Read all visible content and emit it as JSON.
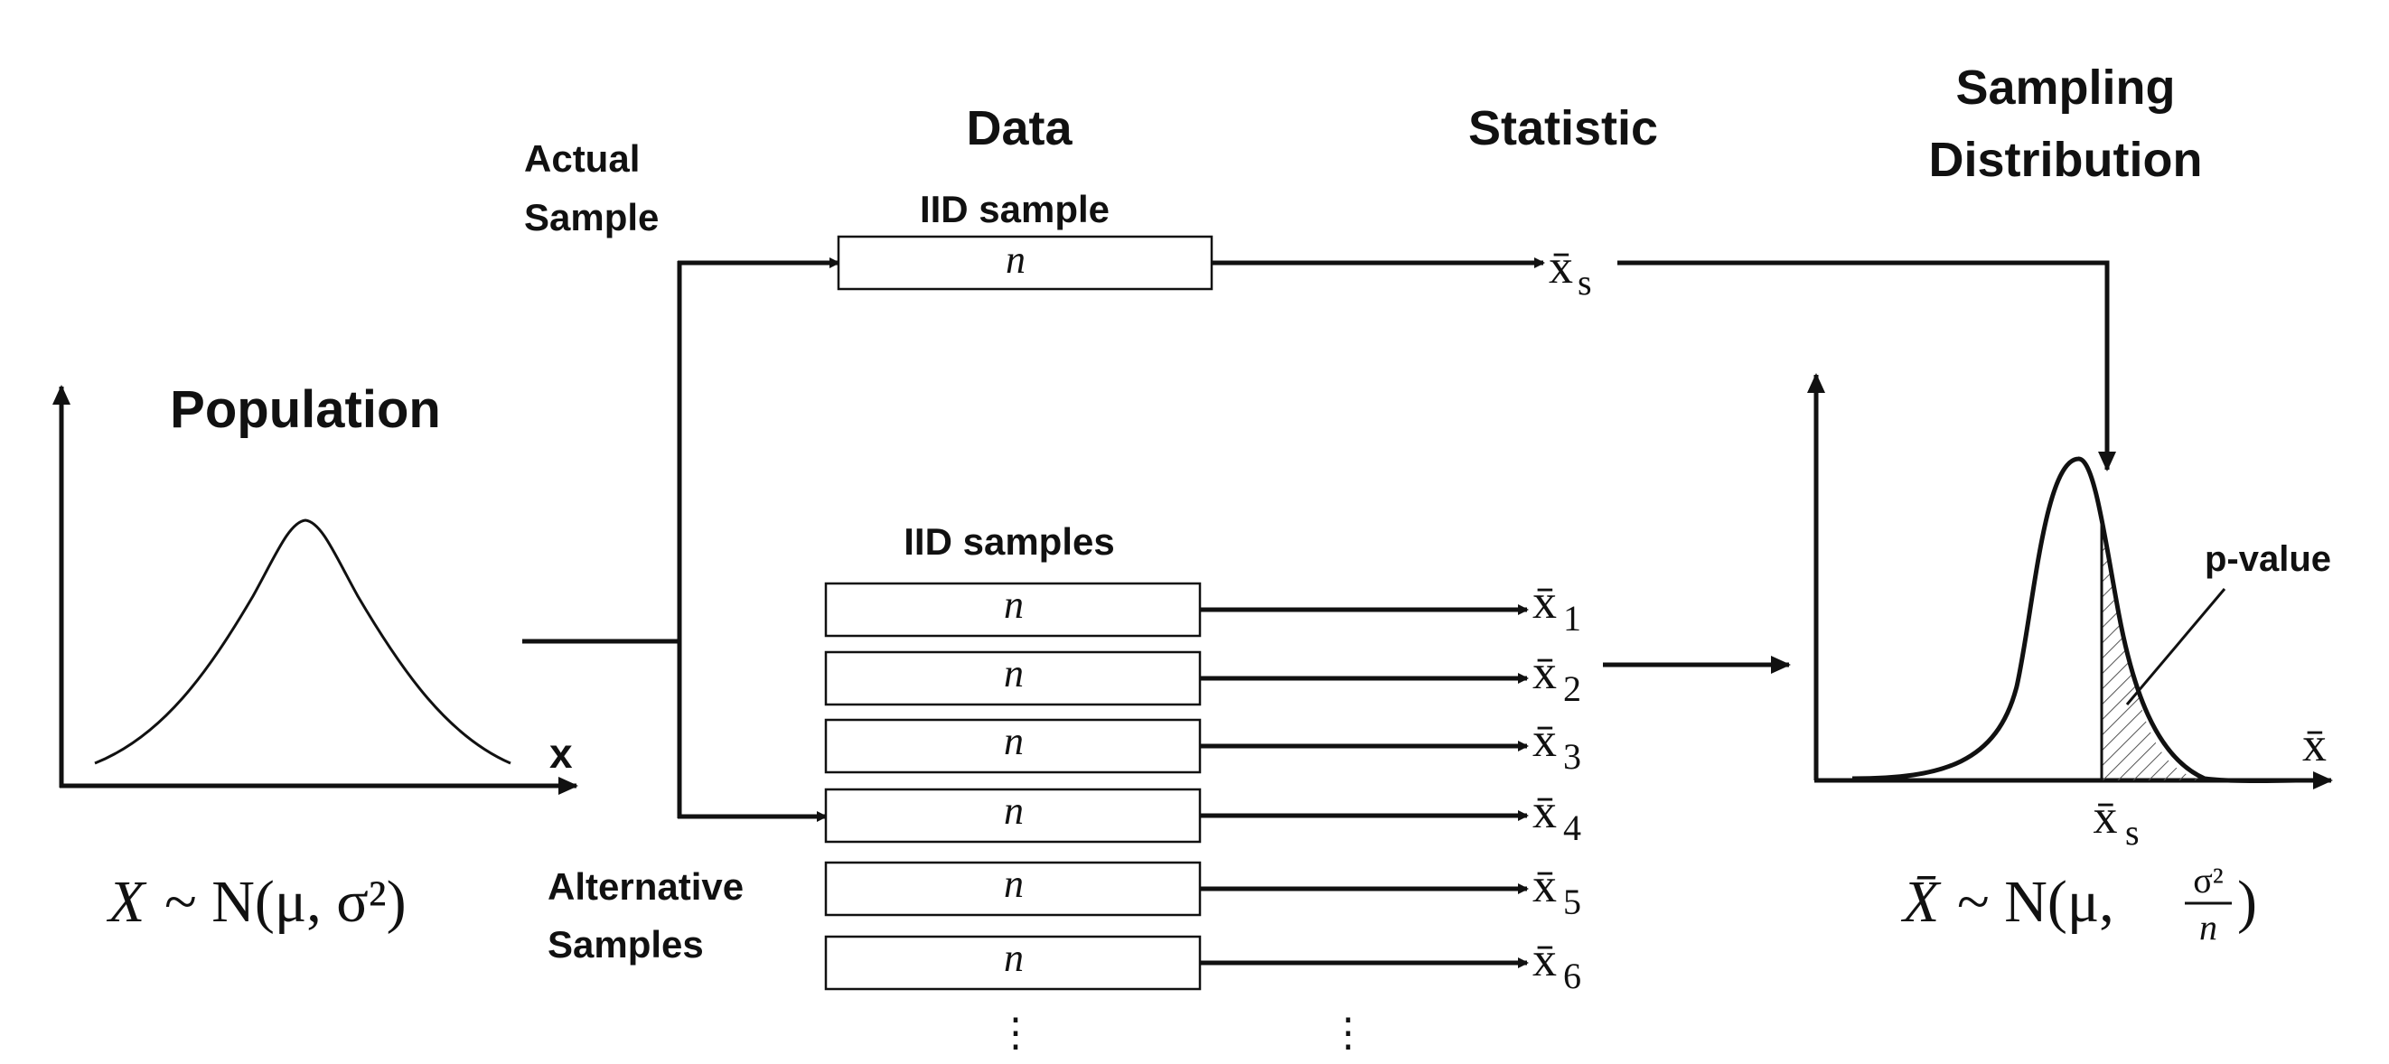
{
  "headers": {
    "data": "Data",
    "statistic": "Statistic",
    "sampling_line1": "Sampling",
    "sampling_line2": "Distribution"
  },
  "population": {
    "title": "Population",
    "axis_label": "x",
    "formula_lhs": "X",
    "formula_rhs": "~ N(μ, σ²)"
  },
  "actual_sample": {
    "label_line1": "Actual",
    "label_line2": "Sample",
    "box_title": "IID sample",
    "n": "n",
    "stat_base": "x̄",
    "stat_sub": "s"
  },
  "alt_samples": {
    "label_line1": "Alternative",
    "label_line2": "Samples",
    "box_title": "IID samples",
    "rows": [
      {
        "n": "n",
        "stat_base": "x̄",
        "stat_sub": "1"
      },
      {
        "n": "n",
        "stat_base": "x̄",
        "stat_sub": "2"
      },
      {
        "n": "n",
        "stat_base": "x̄",
        "stat_sub": "3"
      },
      {
        "n": "n",
        "stat_base": "x̄",
        "stat_sub": "4"
      },
      {
        "n": "n",
        "stat_base": "x̄",
        "stat_sub": "5"
      },
      {
        "n": "n",
        "stat_base": "x̄",
        "stat_sub": "6"
      }
    ],
    "ellipsis": "⋮"
  },
  "sampling_dist": {
    "axis_label": "x̄",
    "xs_base": "x̄",
    "xs_sub": "s",
    "p_value": "p-value",
    "formula_lhs": "X̄",
    "formula_mid": "~ N(μ,",
    "frac_num": "σ²",
    "frac_den": "n",
    "formula_end": ")"
  }
}
